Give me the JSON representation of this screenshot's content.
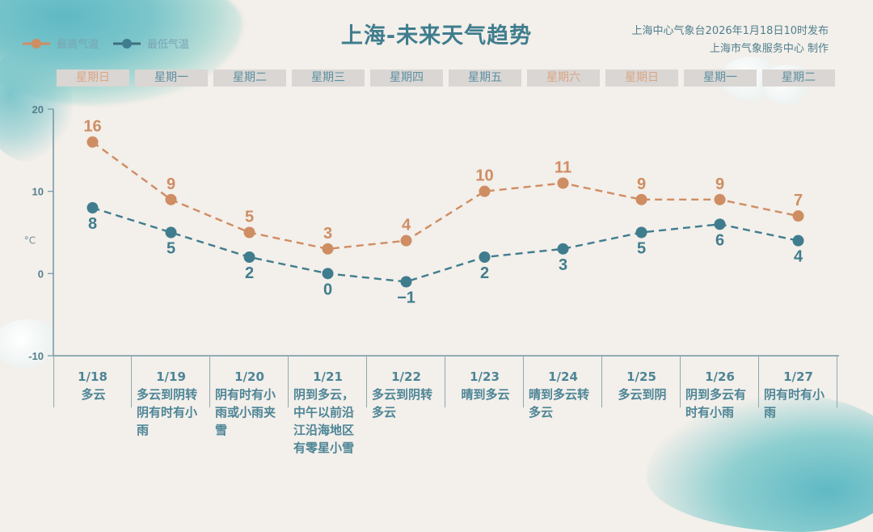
{
  "header": {
    "title": "上海-未来天气趋势",
    "issuer_line1": "上海中心气象台2026年1月18日10时发布",
    "issuer_line2": "上海市气象服务中心  制作"
  },
  "legend": {
    "high_label": "最高气温",
    "low_label": "最低气温",
    "high_color": "#cf8d63",
    "low_color": "#3f7d8e"
  },
  "weekdays": [
    {
      "label": "星期日",
      "weekend": true
    },
    {
      "label": "星期一",
      "weekend": false
    },
    {
      "label": "星期二",
      "weekend": false
    },
    {
      "label": "星期三",
      "weekend": false
    },
    {
      "label": "星期四",
      "weekend": false
    },
    {
      "label": "星期五",
      "weekend": false
    },
    {
      "label": "星期六",
      "weekend": true
    },
    {
      "label": "星期日",
      "weekend": true
    },
    {
      "label": "星期一",
      "weekend": false
    },
    {
      "label": "星期二",
      "weekend": false
    }
  ],
  "days": [
    {
      "date": "1/18",
      "weather": "多云"
    },
    {
      "date": "1/19",
      "weather": "多云到阴转阴有时有小雨"
    },
    {
      "date": "1/20",
      "weather": "阴有时有小雨或小雨夹雪"
    },
    {
      "date": "1/21",
      "weather": "阴到多云，中午以前沿江沿海地区有零星小雪"
    },
    {
      "date": "1/22",
      "weather": "多云到阴转多云"
    },
    {
      "date": "1/23",
      "weather": "晴到多云"
    },
    {
      "date": "1/24",
      "weather": "晴到多云转多云"
    },
    {
      "date": "1/25",
      "weather": "多云到阴"
    },
    {
      "date": "1/26",
      "weather": "阴到多云有时有小雨"
    },
    {
      "date": "1/27",
      "weather": "阴有时有小雨"
    }
  ],
  "chart_data": {
    "type": "line",
    "title": "上海-未来天气趋势",
    "xlabel": "",
    "ylabel": "°C",
    "categories": [
      "1/18",
      "1/19",
      "1/20",
      "1/21",
      "1/22",
      "1/23",
      "1/24",
      "1/25",
      "1/26",
      "1/27"
    ],
    "series": [
      {
        "name": "最高气温",
        "color": "#cf8d63",
        "values": [
          16,
          9,
          5,
          3,
          4,
          10,
          11,
          9,
          9,
          7
        ]
      },
      {
        "name": "最低气温",
        "color": "#3f7d8e",
        "values": [
          8,
          5,
          2,
          0,
          -1,
          2,
          3,
          5,
          6,
          4
        ]
      }
    ],
    "ylim": [
      -10,
      20
    ],
    "yticks": [
      20,
      10,
      0,
      -10
    ],
    "grid": false,
    "legend_position": "top-left",
    "line_style": "dashed"
  }
}
